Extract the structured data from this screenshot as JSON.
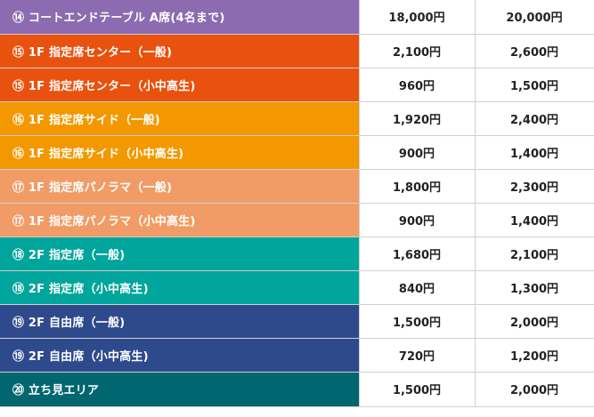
{
  "rows": [
    {
      "label": "⑭ コートエンドテーブル A席(4名まで)",
      "price1": "18,000円",
      "price2": "20,000円",
      "color": "#8c6bb0"
    },
    {
      "label": "⑮ 1F 指定席センター（一般)",
      "price1": "2,100円",
      "price2": "2,600円",
      "color": "#e8520e"
    },
    {
      "label": "⑮ 1F 指定席センター（小中高生)",
      "price1": "960円",
      "price2": "1,500円",
      "color": "#e8520e"
    },
    {
      "label": "⑯ 1F 指定席サイド（一般)",
      "price1": "1,920円",
      "price2": "2,400円",
      "color": "#f39800"
    },
    {
      "label": "⑯ 1F 指定席サイド（小中高生)",
      "price1": "900円",
      "price2": "1,400円",
      "color": "#f39800"
    },
    {
      "label": "⑰ 1F 指定席パノラマ（一般)",
      "price1": "1,800円",
      "price2": "2,300円",
      "color": "#f19c66"
    },
    {
      "label": "⑰ 1F 指定席パノラマ（小中高生)",
      "price1": "900円",
      "price2": "1,400円",
      "color": "#f19c66"
    },
    {
      "label": "⑱ 2F 指定席（一般)",
      "price1": "1,680円",
      "price2": "2,100円",
      "color": "#00a59b"
    },
    {
      "label": "⑱ 2F 指定席（小中高生)",
      "price1": "840円",
      "price2": "1,300円",
      "color": "#00a59b"
    },
    {
      "label": "⑲ 2F 自由席（一般)",
      "price1": "1,500円",
      "price2": "2,000円",
      "color": "#2e4a8c"
    },
    {
      "label": "⑲ 2F 自由席（小中高生)",
      "price1": "720円",
      "price2": "1,200円",
      "color": "#2e4a8c"
    },
    {
      "label": "⑳ 立ち見エリア",
      "price1": "1,500円",
      "price2": "2,000円",
      "color": "#006670"
    }
  ]
}
